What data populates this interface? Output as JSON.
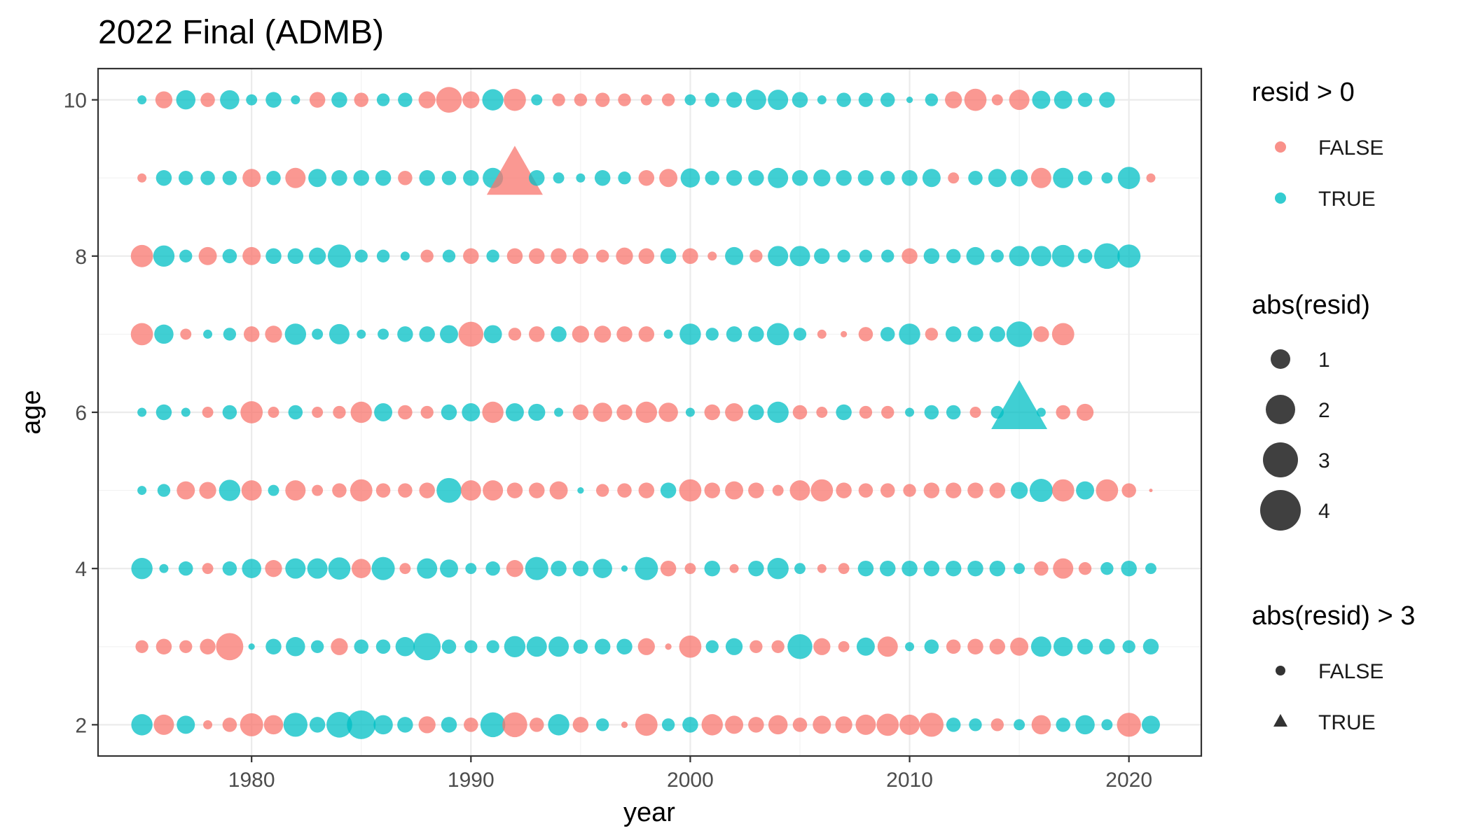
{
  "chart_data": {
    "type": "scatter",
    "title": "2022 Final (ADMB)",
    "xlabel": "year",
    "ylabel": "age",
    "xlim": [
      1973,
      2023.3
    ],
    "ylim": [
      1.6,
      10.4
    ],
    "x_ticks": [
      "1980",
      "1990",
      "2000",
      "2010",
      "2020"
    ],
    "y_ticks": [
      "2",
      "4",
      "6",
      "8",
      "10"
    ],
    "grid": true,
    "colors": {
      "positive": "#00BFC4",
      "negative": "#F8766D",
      "legend_size": "#000000",
      "panel_border": "#333333"
    },
    "legends": {
      "sign": {
        "title": "resid > 0",
        "entries": [
          "FALSE",
          "TRUE"
        ]
      },
      "size": {
        "title": "abs(resid)",
        "entries": [
          "1",
          "2",
          "3",
          "4"
        ]
      },
      "shape": {
        "title": "abs(resid) > 3",
        "entries": [
          "FALSE",
          "TRUE"
        ]
      }
    },
    "start_year": 1975,
    "series": [
      {
        "age": 2,
        "resid": [
          1.1,
          -1.0,
          0.8,
          -0.2,
          -0.5,
          -1.3,
          -0.9,
          1.4,
          0.6,
          1.6,
          2.0,
          0.9,
          0.6,
          -0.7,
          0.6,
          -0.5,
          1.5,
          -1.5,
          -0.5,
          1.1,
          -0.6,
          0.4,
          -0.1,
          -1.2,
          0.4,
          0.6,
          -1.1,
          -0.8,
          -0.6,
          -0.9,
          -0.5,
          -0.8,
          -0.7,
          -1.0,
          -1.2,
          -1.0,
          -1.4,
          0.5,
          0.4,
          -0.4,
          0.3,
          -0.9,
          0.5,
          0.9,
          0.3,
          -1.4,
          0.8
        ]
      },
      {
        "age": 3,
        "resid": [
          -0.4,
          -0.6,
          -0.4,
          -0.6,
          -1.8,
          0.1,
          0.6,
          0.9,
          0.4,
          -0.7,
          0.5,
          0.5,
          0.9,
          1.8,
          0.5,
          0.4,
          0.4,
          1.1,
          1.0,
          1.0,
          0.5,
          0.6,
          0.6,
          -0.7,
          -0.1,
          -1.2,
          0.4,
          0.7,
          -0.4,
          -0.4,
          1.5,
          -0.7,
          -0.3,
          0.8,
          -1.0,
          0.2,
          0.5,
          -0.5,
          -0.6,
          -0.6,
          -0.8,
          1.0,
          0.9,
          0.6,
          0.6,
          0.4,
          0.6
        ]
      },
      {
        "age": 4,
        "resid": [
          1.1,
          0.2,
          0.5,
          -0.3,
          0.5,
          0.9,
          -0.7,
          1.0,
          1.0,
          1.2,
          -0.9,
          1.3,
          -0.3,
          1.0,
          0.8,
          0.3,
          0.5,
          -0.7,
          1.3,
          0.6,
          0.6,
          0.9,
          0.1,
          1.3,
          -0.6,
          -0.3,
          0.6,
          -0.2,
          0.6,
          1.1,
          0.3,
          -0.2,
          -0.3,
          0.6,
          0.6,
          0.6,
          0.6,
          0.6,
          0.6,
          0.6,
          0.3,
          -0.5,
          -1.0,
          -0.4,
          0.4,
          0.6,
          0.3
        ]
      },
      {
        "age": 5,
        "resid": [
          0.2,
          0.4,
          -0.8,
          -0.7,
          1.1,
          -1.0,
          0.3,
          -1.0,
          -0.3,
          -0.5,
          -1.2,
          -0.5,
          -0.5,
          -0.6,
          1.5,
          -1.0,
          -1.0,
          -0.6,
          -0.6,
          -0.8,
          0.1,
          -0.4,
          -0.5,
          -0.6,
          0.6,
          -1.2,
          -0.6,
          -0.8,
          -0.6,
          -0.3,
          -1.0,
          -1.2,
          -0.6,
          -0.5,
          -0.5,
          -0.4,
          -0.6,
          -0.6,
          -0.6,
          -0.6,
          0.7,
          1.3,
          -1.2,
          0.8,
          -1.2,
          -0.5,
          0.0
        ]
      },
      {
        "age": 6,
        "resid": [
          0.2,
          0.6,
          0.2,
          -0.3,
          0.5,
          -1.2,
          -0.3,
          0.5,
          -0.3,
          -0.4,
          -1.1,
          0.8,
          -0.5,
          -0.4,
          0.6,
          0.8,
          -1.1,
          0.8,
          0.7,
          0.2,
          -0.6,
          -0.9,
          -0.6,
          -1.1,
          -0.9,
          0.2,
          -0.6,
          -0.8,
          0.6,
          1.1,
          -0.5,
          -0.3,
          0.6,
          -0.4,
          -0.4,
          0.2,
          0.5,
          0.5,
          -0.3,
          0.4,
          3.4,
          0.2,
          -0.5,
          -0.7
        ]
      },
      {
        "age": 7,
        "resid": [
          -1.2,
          0.9,
          -0.3,
          0.2,
          0.4,
          -0.6,
          -0.7,
          1.1,
          0.3,
          1.0,
          0.2,
          0.3,
          0.6,
          0.6,
          0.8,
          -1.5,
          0.8,
          -0.4,
          -0.6,
          0.6,
          -0.7,
          -0.7,
          -0.6,
          -0.6,
          0.2,
          1.1,
          0.4,
          0.6,
          0.6,
          1.2,
          0.4,
          -0.2,
          -0.1,
          -0.5,
          0.5,
          1.1,
          -0.4,
          0.6,
          0.6,
          0.6,
          1.6,
          -0.6,
          -1.2
        ]
      },
      {
        "age": 8,
        "resid": [
          -1.2,
          1.1,
          0.4,
          -0.8,
          0.5,
          -0.8,
          0.6,
          0.6,
          0.7,
          1.3,
          0.4,
          0.4,
          0.2,
          -0.4,
          0.4,
          -0.6,
          0.4,
          -0.6,
          -0.6,
          -0.6,
          -0.6,
          -0.4,
          -0.7,
          -0.6,
          0.6,
          -0.6,
          -0.2,
          0.8,
          -0.4,
          1.0,
          1.0,
          0.6,
          0.4,
          0.4,
          0.4,
          -0.6,
          0.6,
          0.5,
          0.8,
          0.4,
          1.0,
          1.0,
          1.2,
          0.5,
          1.6,
          1.3
        ]
      },
      {
        "age": 9,
        "resid": [
          -0.2,
          0.6,
          0.5,
          0.5,
          0.5,
          -0.8,
          0.5,
          -1.0,
          0.8,
          0.6,
          0.6,
          0.6,
          -0.5,
          0.6,
          0.5,
          0.6,
          1.0,
          -3.3,
          0.6,
          0.3,
          0.2,
          0.6,
          0.4,
          -0.6,
          -0.8,
          0.9,
          0.5,
          0.6,
          0.6,
          1.0,
          0.6,
          0.7,
          0.6,
          0.6,
          0.5,
          0.6,
          0.8,
          -0.3,
          0.5,
          0.8,
          0.7,
          -1.0,
          1.0,
          0.5,
          0.3,
          1.2,
          -0.2
        ]
      },
      {
        "age": 10,
        "resid": [
          0.2,
          -0.7,
          0.9,
          -0.5,
          0.9,
          0.3,
          0.6,
          0.2,
          -0.6,
          0.6,
          -0.5,
          0.4,
          0.5,
          -0.7,
          -1.6,
          -0.7,
          1.1,
          -1.2,
          0.3,
          -0.4,
          -0.4,
          -0.5,
          -0.4,
          -0.3,
          -0.4,
          0.3,
          0.5,
          0.6,
          1.0,
          1.0,
          0.6,
          0.2,
          0.5,
          0.5,
          0.5,
          0.1,
          0.4,
          -0.7,
          -1.2,
          -0.3,
          -1.0,
          0.8,
          0.8,
          0.5,
          0.6
        ]
      }
    ]
  }
}
